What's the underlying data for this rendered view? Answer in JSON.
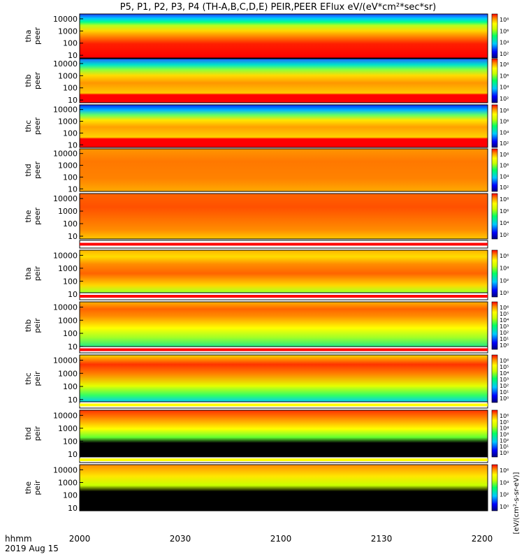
{
  "chart_data": {
    "type": "heatmap",
    "title": "P5, P1, P2, P3, P4 (TH-A,B,C,D,E) PEIR,PEER EFlux eV/(eV*cm²*sec*sr)",
    "x_tick_labels": [
      "2000",
      "2030",
      "2100",
      "2130",
      "2200"
    ],
    "x_label_lines": [
      "hhmm",
      "2019 Aug 15"
    ],
    "y_scale": "log",
    "y_tick_labels": [
      "10",
      "100",
      "1000",
      "10000"
    ],
    "colorbar_label": "[eV/(cm²-s-sr-eV)]",
    "colormap": [
      "#000080",
      "#0000ff",
      "#00c8ff",
      "#00ff64",
      "#c8ff00",
      "#ffff00",
      "#ff8c00",
      "#ff0000"
    ],
    "panels": [
      {
        "name": "tha peer",
        "line1": "tha",
        "line2": "peer",
        "cb_ticks": [
          "10⁸",
          "10⁶",
          "10⁴",
          "10²"
        ]
      },
      {
        "name": "thb peer",
        "line1": "thb",
        "line2": "peer",
        "cb_ticks": [
          "10⁸",
          "10⁶",
          "10⁴",
          "10²"
        ]
      },
      {
        "name": "thc peer",
        "line1": "thc",
        "line2": "peer",
        "cb_ticks": [
          "10⁸",
          "10⁶",
          "10⁴",
          "10²"
        ]
      },
      {
        "name": "thd peer",
        "line1": "thd",
        "line2": "peer",
        "cb_ticks": [
          "10⁸",
          "10⁶",
          "10⁴",
          "10²"
        ]
      },
      {
        "name": "the peer",
        "line1": "the",
        "line2": "peer",
        "cb_ticks": [
          "10⁸",
          "10⁶",
          "10⁴",
          "10²"
        ]
      },
      {
        "name": "tha peir",
        "line1": "tha",
        "line2": "peir",
        "cb_ticks": [
          "10⁶",
          "10⁴",
          "10²",
          "10⁰"
        ]
      },
      {
        "name": "thb peir",
        "line1": "thb",
        "line2": "peir",
        "cb_ticks": [
          "10⁶",
          "10⁵",
          "10⁴",
          "10³",
          "10²",
          "10¹",
          "10⁰"
        ]
      },
      {
        "name": "thc peir",
        "line1": "thc",
        "line2": "peir",
        "cb_ticks": [
          "10⁶",
          "10⁵",
          "10⁴",
          "10³",
          "10²",
          "10¹",
          "10⁰"
        ]
      },
      {
        "name": "thd peir",
        "line1": "thd",
        "line2": "peir",
        "cb_ticks": [
          "10⁶",
          "10⁵",
          "10⁴",
          "10³",
          "10²",
          "10¹",
          "10⁰"
        ]
      },
      {
        "name": "the peir",
        "line1": "the",
        "line2": "peir",
        "cb_ticks": [
          "10⁶",
          "10⁴",
          "10²",
          "10⁰"
        ]
      }
    ]
  }
}
